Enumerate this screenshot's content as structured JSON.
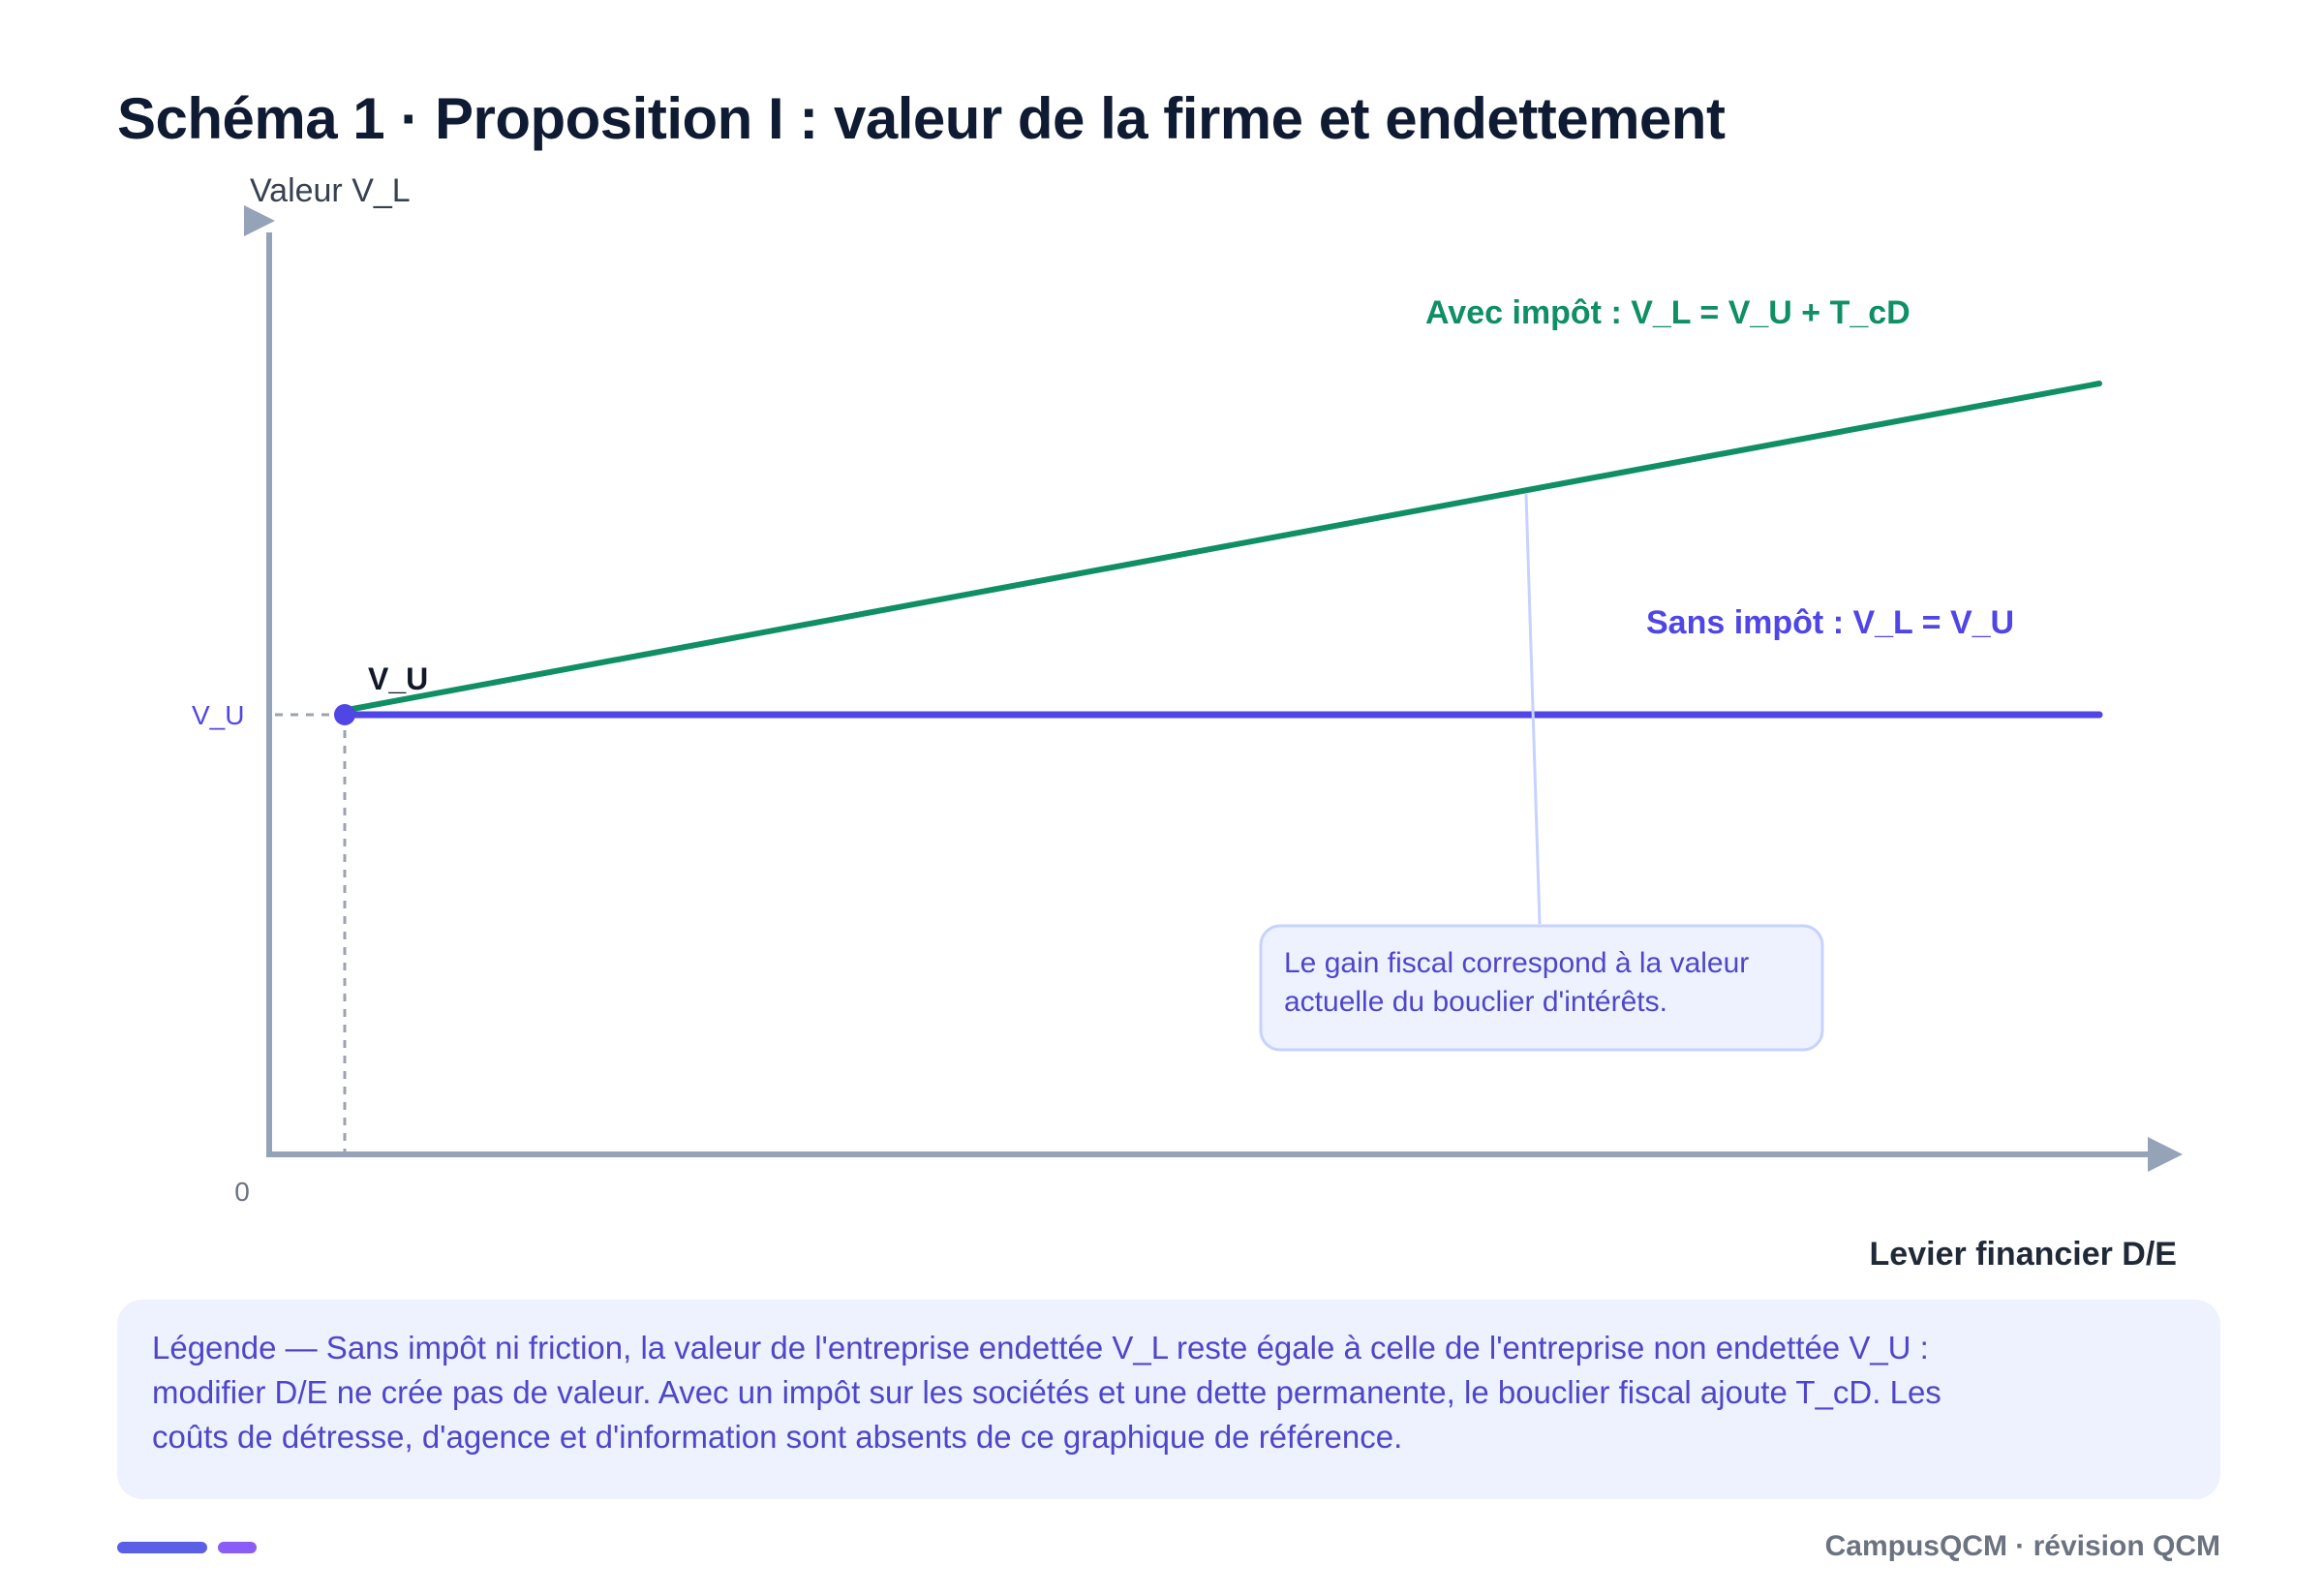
{
  "title": "Schéma 1 · Proposition I : valeur de la firme et endettement",
  "axes": {
    "y_label": "Valeur V_L",
    "x_label": "Levier financier D/E",
    "origin_label": "0",
    "y_tick_label": "V_U"
  },
  "point_label": "V_U",
  "series": [
    {
      "name": "Avec impôt : V_L = V_U + T_cD",
      "color": "#0f8f63",
      "slope": "positive"
    },
    {
      "name": "Sans impôt : V_L = V_U",
      "color": "#4f46e5",
      "slope": "zero"
    }
  ],
  "callout": {
    "lines": [
      "Le gain fiscal correspond à la valeur",
      "actuelle du bouclier d'intérêts."
    ]
  },
  "legend": {
    "lines": [
      "Légende — Sans impôt ni friction, la valeur de l'entreprise endettée V_L reste égale à celle de l'entreprise non endettée V_U :",
      "modifier D/E ne crée pas de valeur. Avec un impôt sur les sociétés et une dette permanente, le bouclier fiscal ajoute T_cD. Les",
      "coûts de détresse, d'agence et d'information sont absents de ce graphique de référence."
    ]
  },
  "footer": "CampusQCM · révision QCM",
  "colors": {
    "axis": "#94a3b8",
    "green": "#0f8f63",
    "blue": "#4f46e5",
    "title": "#0f1a33",
    "callout_bg": "#eef1fe",
    "callout_border": "#c7d2fe"
  }
}
